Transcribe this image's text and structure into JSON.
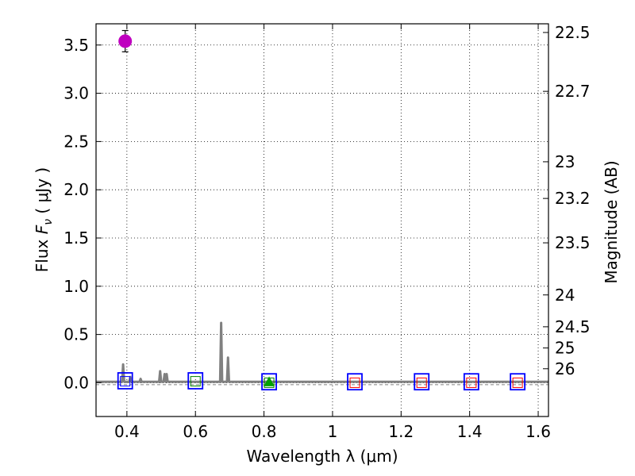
{
  "chart_data": {
    "type": "scatter",
    "xlabel": "Wavelength  λ (μm)",
    "ylabel": "Flux  F_ν  ( μJy )",
    "ylabel_parts": {
      "prefix": "Flux  ",
      "symbol": "F",
      "subscript": "ν",
      "suffix": "  ( μJy )"
    },
    "y2label": "Magnitude (AB)",
    "xlim": [
      0.31,
      1.63
    ],
    "ylim": [
      -0.35,
      3.72
    ],
    "grid": true,
    "x_ticks": [
      0.4,
      0.6,
      0.8,
      1.0,
      1.2,
      1.4,
      1.6
    ],
    "x_tick_labels": [
      "0.4",
      "0.6",
      "0.8",
      "1",
      "1.2",
      "1.4",
      "1.6"
    ],
    "y_ticks": [
      0.0,
      0.5,
      1.0,
      1.5,
      2.0,
      2.5,
      3.0,
      3.5
    ],
    "y_tick_labels": [
      "0.0",
      "0.5",
      "1.0",
      "1.5",
      "2.0",
      "2.5",
      "3.0",
      "3.5"
    ],
    "y2_ticks": [
      {
        "label": "22.5",
        "flux": 3.63
      },
      {
        "label": "22.7",
        "flux": 3.02
      },
      {
        "label": "23",
        "flux": 2.29
      },
      {
        "label": "23.2",
        "flux": 1.91
      },
      {
        "label": "23.5",
        "flux": 1.45
      },
      {
        "label": "24",
        "flux": 0.91
      },
      {
        "label": "24.5",
        "flux": 0.58
      },
      {
        "label": "25",
        "flux": 0.36
      },
      {
        "label": "26",
        "flux": 0.145
      }
    ],
    "series": [
      {
        "name": "detection",
        "marker": "circle",
        "color": "#bf00bf",
        "points": [
          {
            "x": 0.395,
            "y": 3.54,
            "yerr": 0.11
          }
        ]
      },
      {
        "name": "upper-limit-boxes",
        "marker": "square-open",
        "color": "#0000ff",
        "points": [
          {
            "x": 0.395,
            "y": 0.02
          },
          {
            "x": 0.6,
            "y": 0.02
          },
          {
            "x": 0.815,
            "y": 0.01
          },
          {
            "x": 1.065,
            "y": 0.01
          },
          {
            "x": 1.26,
            "y": 0.01
          },
          {
            "x": 1.405,
            "y": 0.01
          },
          {
            "x": 1.54,
            "y": 0.01
          }
        ]
      },
      {
        "name": "model-photometry",
        "marker": "square-open-small",
        "color_by_point": [
          "#0000ff",
          "#008000",
          "#008000",
          "#ff0000",
          "#ff0000",
          "#ff0000",
          "#ff0000"
        ],
        "points": [
          {
            "x": 0.395,
            "y": 0.015
          },
          {
            "x": 0.6,
            "y": 0.015
          },
          {
            "x": 0.815,
            "y": 0.0
          },
          {
            "x": 1.065,
            "y": 0.0
          },
          {
            "x": 1.26,
            "y": 0.0
          },
          {
            "x": 1.405,
            "y": 0.0
          },
          {
            "x": 1.54,
            "y": 0.0
          }
        ]
      },
      {
        "name": "triangle",
        "marker": "triangle",
        "color": "#00a000",
        "points": [
          {
            "x": 0.815,
            "y": 0.0
          }
        ]
      }
    ],
    "model_spectrum": {
      "color": "#808080",
      "baseline": 0.01,
      "x_range": [
        0.31,
        1.63
      ],
      "lines": [
        {
          "x": 0.389,
          "y": 0.19
        },
        {
          "x": 0.41,
          "y": 0.06
        },
        {
          "x": 0.44,
          "y": 0.04
        },
        {
          "x": 0.497,
          "y": 0.12
        },
        {
          "x": 0.51,
          "y": 0.09
        },
        {
          "x": 0.516,
          "y": 0.09
        },
        {
          "x": 0.675,
          "y": 0.62
        },
        {
          "x": 0.695,
          "y": 0.26
        }
      ]
    },
    "reference_lines": [
      {
        "y": 0.0,
        "style": "dotted",
        "color": "#000000"
      },
      {
        "y": -0.02,
        "style": "dashed",
        "color": "#808080"
      }
    ]
  }
}
